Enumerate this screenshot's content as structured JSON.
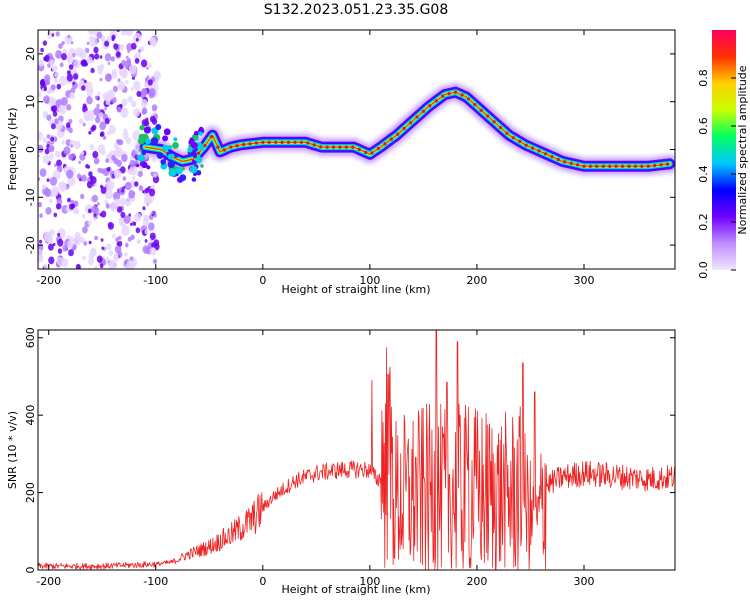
{
  "figure": {
    "title": "S132.2023.051.23.35.G08"
  },
  "chart_data": [
    {
      "type": "heatmap",
      "title": "S132.2023.051.23.35.G08",
      "xlabel": "Height of straight line (km)",
      "ylabel": "Frequency (Hz)",
      "xlim": [
        -210,
        385
      ],
      "ylim": [
        -25,
        25
      ],
      "x_ticks": [
        -200,
        -100,
        0,
        100,
        200,
        300
      ],
      "x_tick_labels": [
        "-200",
        "-100",
        "0",
        "100",
        "200",
        "300"
      ],
      "y_ticks": [
        -20,
        -10,
        0,
        10,
        20
      ],
      "y_tick_labels": [
        "-20",
        "-10",
        "0",
        "10",
        "20"
      ],
      "colorbar": {
        "label": "Normalized spectral amplitude",
        "range": [
          0,
          1
        ],
        "ticks": [
          0.0,
          0.2,
          0.4,
          0.6,
          0.8
        ],
        "tick_labels": [
          "0.0",
          "0.2",
          "0.4",
          "0.6",
          "0.8"
        ],
        "colors": [
          "#f0e8ff",
          "#c08cff",
          "#7000ff",
          "#0000ff",
          "#00c8ff",
          "#00ff60",
          "#c8ff00",
          "#ffd000",
          "#ff3000",
          "#ff0060"
        ]
      },
      "ridge": {
        "x": [
          -110,
          -95,
          -85,
          -75,
          -65,
          -55,
          -47,
          -40,
          -30,
          -20,
          0,
          20,
          40,
          55,
          70,
          85,
          100,
          110,
          125,
          140,
          155,
          170,
          180,
          190,
          200,
          215,
          230,
          245,
          260,
          280,
          300,
          320,
          340,
          360,
          380
        ],
        "y": [
          0.5,
          0,
          -1.5,
          -2.5,
          -2,
          0.5,
          3,
          -0.5,
          0.5,
          1,
          1.5,
          1.5,
          1.5,
          0.5,
          0.5,
          0.5,
          -1,
          0.5,
          3,
          6,
          9,
          11.5,
          12,
          11,
          9,
          6,
          3,
          1,
          -0.5,
          -2.5,
          -3.5,
          -3.5,
          -3.5,
          -3.5,
          -3
        ]
      },
      "noise_region_x": [
        -210,
        -110
      ]
    },
    {
      "type": "line",
      "xlabel": "Height of straight line (km)",
      "ylabel": "SNR (10 * v/v)",
      "xlim": [
        -210,
        385
      ],
      "ylim": [
        0,
        620
      ],
      "x_ticks": [
        -200,
        -100,
        0,
        100,
        200,
        300
      ],
      "x_tick_labels": [
        "-200",
        "-100",
        "0",
        "100",
        "200",
        "300"
      ],
      "y_ticks": [
        0,
        200,
        400,
        600
      ],
      "y_tick_labels": [
        "0",
        "200",
        "400",
        "600"
      ],
      "color": "#ee2222",
      "envelope": {
        "x": [
          -210,
          -150,
          -100,
          -85,
          -70,
          -50,
          -30,
          -10,
          10,
          30,
          50,
          70,
          90,
          100,
          108,
          115,
          125,
          150,
          175,
          200,
          225,
          240,
          255,
          265,
          280,
          300,
          320,
          340,
          360,
          385
        ],
        "y": [
          10,
          10,
          15,
          20,
          40,
          60,
          90,
          130,
          190,
          230,
          250,
          258,
          260,
          258,
          230,
          300,
          180,
          200,
          200,
          200,
          190,
          200,
          100,
          220,
          240,
          250,
          245,
          240,
          235,
          240
        ]
      },
      "spikes": [
        {
          "x": 102,
          "y": 490
        },
        {
          "x": 117,
          "y": 505
        },
        {
          "x": 132,
          "y": 400
        },
        {
          "x": 162,
          "y": 630
        },
        {
          "x": 172,
          "y": 485
        },
        {
          "x": 182,
          "y": 590
        },
        {
          "x": 192,
          "y": 420
        },
        {
          "x": 223,
          "y": 370
        },
        {
          "x": 243,
          "y": 535
        },
        {
          "x": 254,
          "y": 460
        }
      ]
    }
  ]
}
